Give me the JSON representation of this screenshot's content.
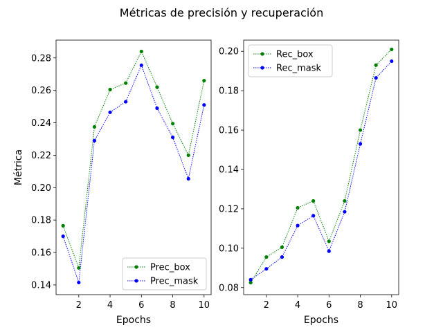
{
  "figure": {
    "suptitle": "Métricas de precisión y recuperación"
  },
  "chart_data": [
    {
      "type": "line",
      "xlabel": "Epochs",
      "ylabel": "Métrica",
      "xlim": [
        0.55,
        10.45
      ],
      "ylim": [
        0.134,
        0.291
      ],
      "x_ticks": [
        2,
        4,
        6,
        8,
        10
      ],
      "y_ticks": [
        0.14,
        0.16,
        0.18,
        0.2,
        0.22,
        0.24,
        0.26,
        0.28
      ],
      "y_tick_labels": [
        "0.14",
        "0.16",
        "0.18",
        "0.20",
        "0.22",
        "0.24",
        "0.26",
        "0.28"
      ],
      "legend_position": "lower-right",
      "grid": false,
      "x": [
        1,
        2,
        3,
        4,
        5,
        6,
        7,
        8,
        9,
        10
      ],
      "series": [
        {
          "name": "Prec_box",
          "color": "#008000",
          "values": [
            0.1765,
            0.1505,
            0.2375,
            0.2605,
            0.2645,
            0.284,
            0.262,
            0.2395,
            0.22,
            0.266
          ]
        },
        {
          "name": "Prec_mask",
          "color": "#0000ff",
          "values": [
            0.17,
            0.1415,
            0.229,
            0.2465,
            0.253,
            0.2755,
            0.249,
            0.231,
            0.2055,
            0.251
          ]
        }
      ]
    },
    {
      "type": "line",
      "xlabel": "Epochs",
      "ylabel": "",
      "xlim": [
        0.55,
        10.45
      ],
      "ylim": [
        0.0764,
        0.2057
      ],
      "x_ticks": [
        2,
        4,
        6,
        8,
        10
      ],
      "y_ticks": [
        0.08,
        0.1,
        0.12,
        0.14,
        0.16,
        0.18,
        0.2
      ],
      "y_tick_labels": [
        "0.08",
        "0.10",
        "0.12",
        "0.14",
        "0.16",
        "0.18",
        "0.20"
      ],
      "legend_position": "top-left",
      "grid": false,
      "x": [
        1,
        2,
        3,
        4,
        5,
        6,
        7,
        8,
        9,
        10
      ],
      "series": [
        {
          "name": "Rec_box",
          "color": "#008000",
          "values": [
            0.0825,
            0.0955,
            0.1005,
            0.1205,
            0.124,
            0.1035,
            0.124,
            0.16,
            0.193,
            0.201
          ]
        },
        {
          "name": "Rec_mask",
          "color": "#0000ff",
          "values": [
            0.084,
            0.0895,
            0.0955,
            0.1115,
            0.1165,
            0.0985,
            0.1185,
            0.153,
            0.1865,
            0.195
          ]
        }
      ]
    }
  ]
}
